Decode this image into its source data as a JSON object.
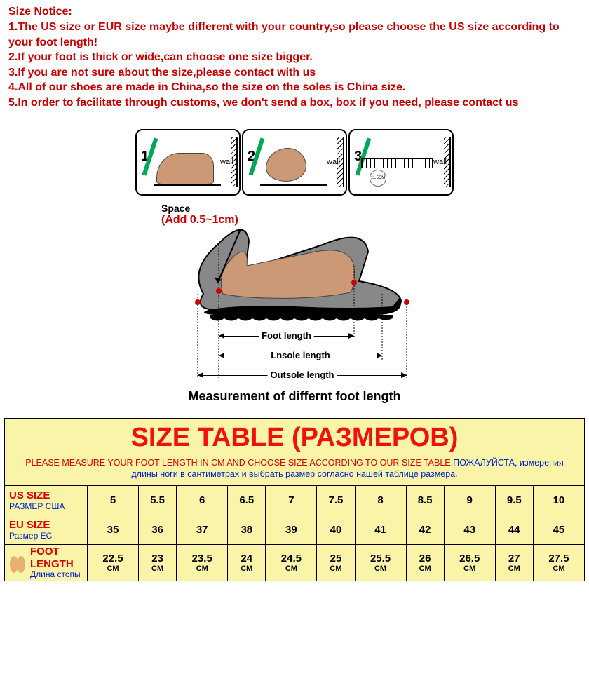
{
  "notice": {
    "title": "Size Notice:",
    "lines": [
      "1.The US size or EUR size maybe different with your country,so please choose the US size according to your foot length!",
      "2.If your foot is thick or wide,can choose one size bigger.",
      "3.If you are not sure about the size,please contact with us",
      "4.All of our shoes are made in China,so the size on the soles is China size.",
      "5.In order to facilitate through customs, we don't send a box, box if you need, please contact us"
    ],
    "title_color": "#cc0000",
    "line_color": "#cc0000"
  },
  "diagram": {
    "steps": [
      {
        "num": "1",
        "wall": "wall"
      },
      {
        "num": "2",
        "wall": "wall"
      },
      {
        "num": "3",
        "wall": "wall",
        "ruler_value": "11.5CM"
      }
    ],
    "space_label": "Space",
    "space_add": "(Add 0.5~1cm)",
    "dim_foot": "Foot length",
    "dim_insole": "Lnsole length",
    "dim_outsole": "Outsole length",
    "caption": "Measurement of differnt foot length"
  },
  "table": {
    "title": "SIZE TABLE (РАЗМЕРОВ)",
    "instruct_red": "PLEASE MEASURE YOUR FOOT LENGTH IN CM AND CHOOSE SIZE ACCORDING TO OUR SIZE TABLE.",
    "instruct_blue": "ПОЖАЛУЙСТА, измерения длины ноги в сантиметрах и выбрать размер согласно нашей таблице размера.",
    "colors": {
      "bg_yellow": "#f9f4a7",
      "title_red": "#f01010",
      "label_red": "#e00000",
      "label_blue": "#0020d0",
      "border": "#000000"
    },
    "rows": [
      {
        "label_primary": "US SIZE",
        "label_secondary": "РАЗМЕР США",
        "values": [
          "5",
          "5.5",
          "6",
          "6.5",
          "7",
          "7.5",
          "8",
          "8.5",
          "9",
          "9.5",
          "10"
        ]
      },
      {
        "label_primary": "EU SIZE",
        "label_secondary": "Размер ЕС",
        "values": [
          "35",
          "36",
          "37",
          "38",
          "39",
          "40",
          "41",
          "42",
          "43",
          "44",
          "45"
        ]
      },
      {
        "label_primary": "FOOT LENGTH",
        "label_secondary": "Длина стопы",
        "values": [
          "22.5",
          "23",
          "23.5",
          "24",
          "24.5",
          "25",
          "25.5",
          "26",
          "26.5",
          "27",
          "27.5"
        ],
        "unit": "CM",
        "has_icon": true
      }
    ]
  }
}
